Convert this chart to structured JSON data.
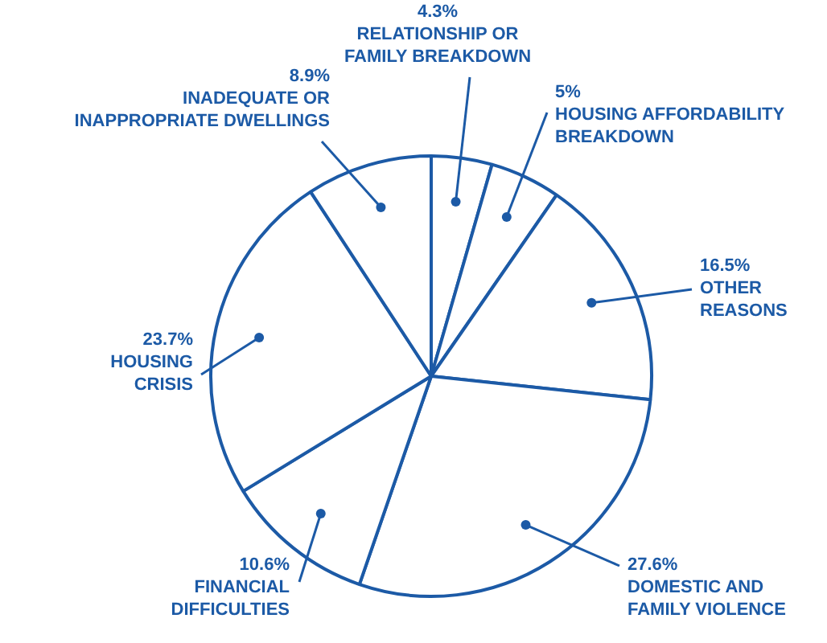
{
  "chart_data": {
    "type": "pie",
    "categories": [
      "RELATIONSHIP OR FAMILY BREAKDOWN",
      "HOUSING AFFORDABILITY BREAKDOWN",
      "OTHER REASONS",
      "DOMESTIC AND FAMILY VIOLENCE",
      "FINANCIAL DIFFICULTIES",
      "HOUSING CRISIS",
      "INADEQUATE OR INAPPROPRIATE DWELLINGS"
    ],
    "values": [
      4.3,
      5,
      16.5,
      27.6,
      10.6,
      23.7,
      8.9
    ],
    "value_labels": [
      "4.3%",
      "5%",
      "16.5%",
      "27.6%",
      "10.6%",
      "23.7%",
      "8.9%"
    ],
    "colors": [
      "#ffffff",
      "#ffffff",
      "#ffffff",
      "#ffffff",
      "#ffffff",
      "#ffffff",
      "#ffffff"
    ],
    "legend": false
  }
}
